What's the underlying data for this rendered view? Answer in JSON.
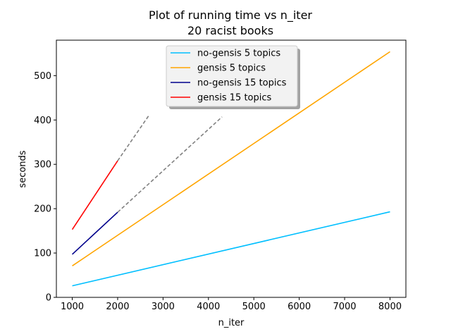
{
  "chart_data": {
    "type": "line",
    "title": "Plot of running time vs n_iter",
    "subtitle": "20 racist books",
    "xlabel": "n_iter",
    "ylabel": "seconds",
    "xlim": [
      650,
      8350
    ],
    "ylim": [
      0,
      580
    ],
    "xticks": [
      1000,
      2000,
      3000,
      4000,
      5000,
      6000,
      7000,
      8000
    ],
    "yticks": [
      0,
      100,
      200,
      300,
      400,
      500
    ],
    "grid": false,
    "legend_position": "upper-center",
    "series": [
      {
        "name": "no-gensis 5 topics",
        "color": "#00bfff",
        "style": "solid",
        "x": [
          1000,
          8000
        ],
        "y": [
          26,
          193
        ]
      },
      {
        "name": "gensis 5 topics",
        "color": "#ffa500",
        "style": "solid",
        "x": [
          1000,
          8000
        ],
        "y": [
          71,
          554
        ]
      },
      {
        "name": "no-gensis 15 topics",
        "color": "#00008b",
        "style": "solid",
        "x": [
          1000,
          2000
        ],
        "y": [
          97,
          192
        ]
      },
      {
        "name": "gensis 15 topics",
        "color": "#ff0000",
        "style": "solid",
        "x": [
          1000,
          2000
        ],
        "y": [
          153,
          308
        ]
      },
      {
        "name": "",
        "color": "#808080",
        "style": "dashed",
        "x": [
          2000,
          4300
        ],
        "y": [
          192,
          407
        ]
      },
      {
        "name": "",
        "color": "#808080",
        "style": "dashed",
        "x": [
          2000,
          2700
        ],
        "y": [
          308,
          412
        ]
      }
    ]
  }
}
